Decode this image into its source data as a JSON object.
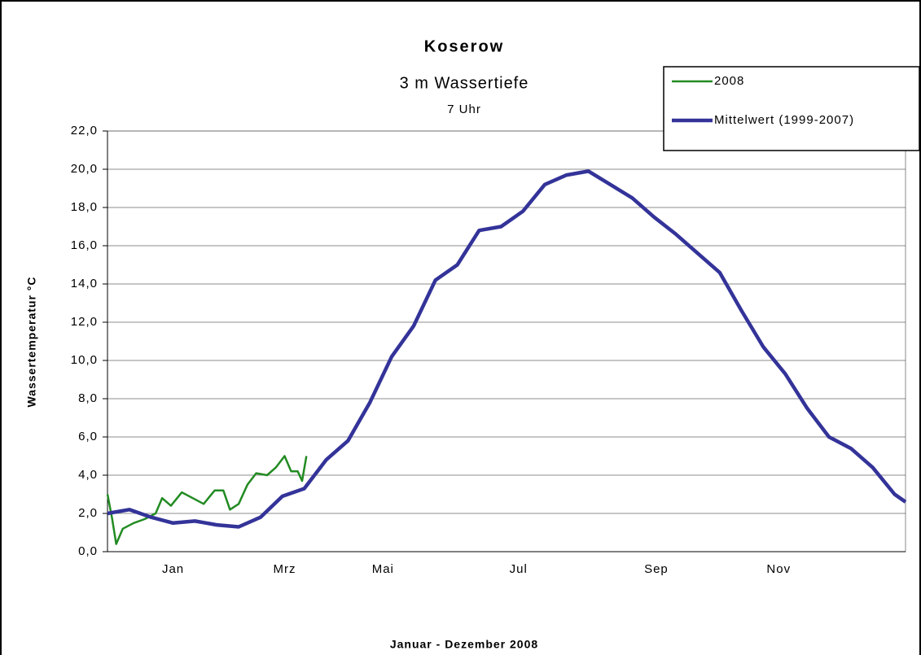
{
  "chart_data": {
    "type": "line",
    "title": "Koserow",
    "subtitle": "3 m Wassertiefe",
    "subtitle2": "7 Uhr",
    "ylabel": "Wassertemperatur °C",
    "xlabel": "Januar - Dezember 2008",
    "xlim": [
      1,
      366
    ],
    "xticks": [
      {
        "value": 31,
        "label": "Jan"
      },
      {
        "value": 82,
        "label": "Mrz"
      },
      {
        "value": 127,
        "label": "Mai"
      },
      {
        "value": 189,
        "label": "Jul"
      },
      {
        "value": 252,
        "label": "Sep"
      },
      {
        "value": 308,
        "label": "Nov"
      }
    ],
    "ylim": [
      0,
      22
    ],
    "yticks": [
      {
        "value": 0,
        "label": "0,0"
      },
      {
        "value": 2,
        "label": "2,0"
      },
      {
        "value": 4,
        "label": "4,0"
      },
      {
        "value": 6,
        "label": "6,0"
      },
      {
        "value": 8,
        "label": "8,0"
      },
      {
        "value": 10,
        "label": "10,0"
      },
      {
        "value": 12,
        "label": "12,0"
      },
      {
        "value": 14,
        "label": "14,0"
      },
      {
        "value": 16,
        "label": "16,0"
      },
      {
        "value": 18,
        "label": "18,0"
      },
      {
        "value": 20,
        "label": "20,0"
      },
      {
        "value": 22,
        "label": "22,0"
      }
    ],
    "grid": true,
    "legend": "top-right",
    "series": [
      {
        "name": "2008",
        "color": "#228b22",
        "width": 2.5,
        "x": [
          1,
          3,
          5,
          8,
          13,
          18,
          23,
          26,
          30,
          35,
          40,
          45,
          50,
          54,
          57,
          61,
          65,
          69,
          74,
          78,
          82,
          85,
          88,
          90,
          92
        ],
        "values": [
          3.0,
          1.8,
          0.4,
          1.2,
          1.5,
          1.7,
          2.0,
          2.8,
          2.4,
          3.1,
          2.8,
          2.5,
          3.2,
          3.2,
          2.2,
          2.5,
          3.5,
          4.1,
          4.0,
          4.4,
          5.0,
          4.2,
          4.2,
          3.7,
          5.0
        ]
      },
      {
        "name": "Mittelwert (1999-2007)",
        "color": "#333399",
        "width": 4.5,
        "x": [
          1,
          11,
          21,
          31,
          41,
          51,
          61,
          71,
          81,
          91,
          101,
          111,
          121,
          131,
          141,
          151,
          161,
          171,
          181,
          191,
          201,
          211,
          221,
          231,
          241,
          251,
          261,
          271,
          281,
          291,
          301,
          311,
          321,
          331,
          341,
          351,
          361,
          366
        ],
        "values": [
          2.0,
          2.2,
          1.8,
          1.5,
          1.6,
          1.4,
          1.3,
          1.8,
          2.9,
          3.3,
          4.8,
          5.8,
          7.8,
          10.2,
          11.8,
          14.2,
          15.0,
          16.8,
          17.0,
          17.8,
          19.2,
          19.7,
          19.9,
          19.2,
          18.5,
          17.5,
          16.6,
          15.6,
          14.6,
          12.6,
          10.7,
          9.3,
          7.5,
          6.0,
          5.4,
          4.4,
          3.0,
          2.6
        ]
      }
    ]
  }
}
